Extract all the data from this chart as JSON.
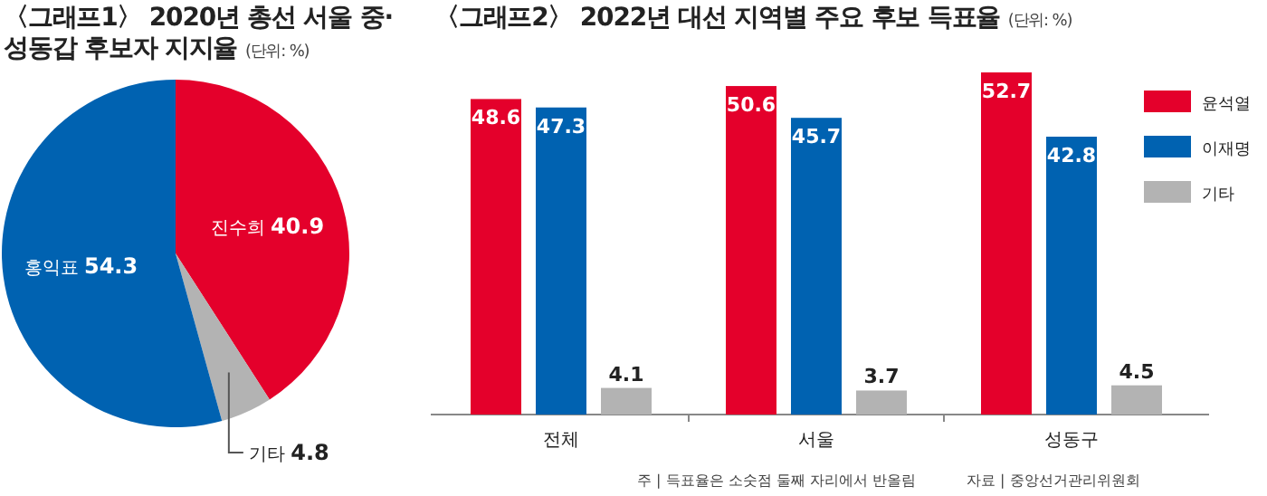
{
  "chart_data": [
    {
      "type": "pie",
      "title": "〈그래프1〉 2020년 총선 서울 중·성동갑 후보자 지지율",
      "subtitle": "(단위: %)",
      "categories": [
        "진수희",
        "기타",
        "홍익표"
      ],
      "values": [
        40.9,
        4.8,
        54.3
      ],
      "colors": [
        "#e4002b",
        "#b3b3b3",
        "#0062b1"
      ],
      "data_labels": true
    },
    {
      "type": "bar",
      "title": "〈그래프2〉 2022년 대선 지역별 주요 후보 득표율",
      "subtitle": "(단위: %)",
      "categories": [
        "전체",
        "서울",
        "성동구"
      ],
      "series": [
        {
          "name": "윤석열",
          "color": "#e4002b",
          "values": [
            48.6,
            50.6,
            52.7
          ]
        },
        {
          "name": "이재명",
          "color": "#0062b1",
          "values": [
            47.3,
            45.7,
            42.8
          ]
        },
        {
          "name": "기타",
          "color": "#b3b3b3",
          "values": [
            4.1,
            3.7,
            4.5
          ]
        }
      ],
      "data_labels": true,
      "legend": "top right",
      "annotations": [
        "주 | 득표율은 소숫점 둘째 자리에서 반올림",
        "자료 | 중앙선거관리위원회"
      ]
    }
  ]
}
